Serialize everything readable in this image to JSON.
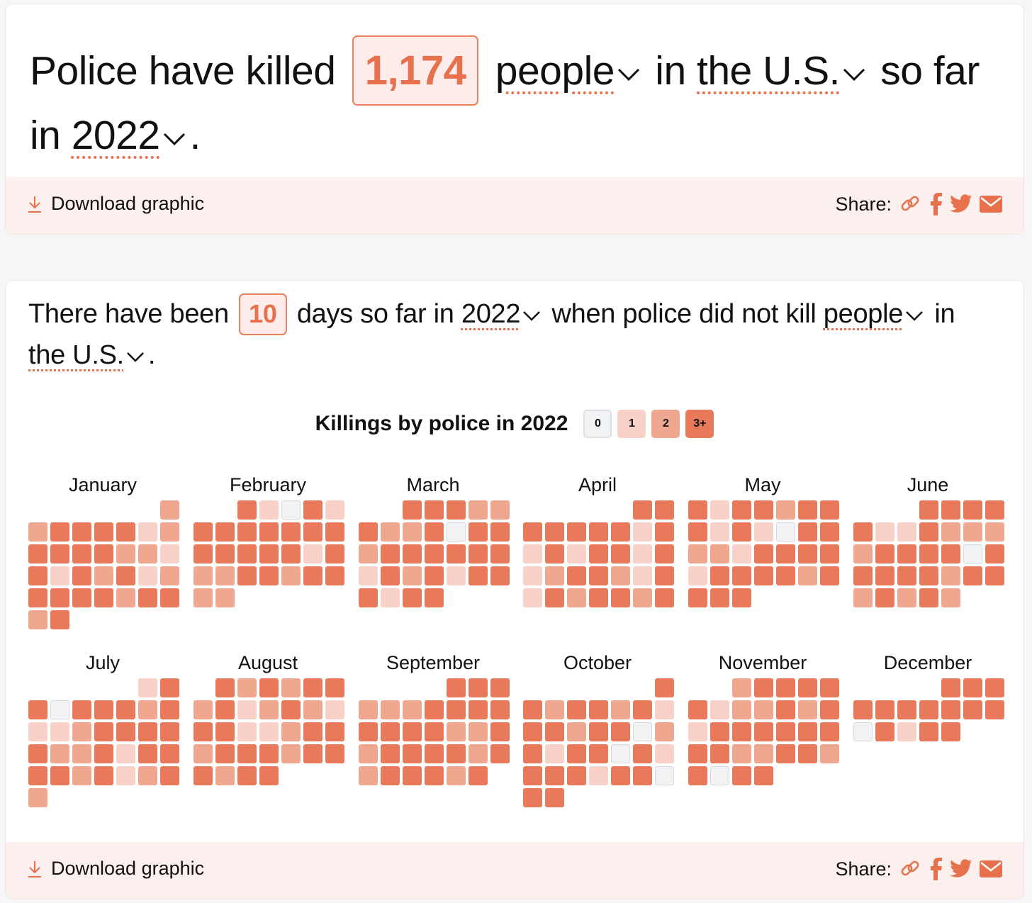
{
  "card1": {
    "headline": {
      "prefix": "Police have killed",
      "count": "1,174",
      "subject": "people",
      "mid": "in",
      "place": "the U.S.",
      "connector": "so far in",
      "year": "2022",
      "end": "."
    },
    "footer": {
      "download_label": "Download graphic",
      "share_label": "Share:"
    }
  },
  "card2": {
    "headline": {
      "prefix": "There have been",
      "count": "10",
      "mid1": "days so far in",
      "year": "2022",
      "mid2": "when police did not kill",
      "subject": "people",
      "mid3": "in",
      "place": "the U.S.",
      "end": "."
    },
    "footer": {
      "download_label": "Download graphic",
      "share_label": "Share:"
    }
  },
  "colors": {
    "accent": "#e8714d",
    "level0": "#f1f2f4",
    "level1": "#f8d2c8",
    "level2": "#efa790",
    "level3": "#e8795a",
    "footer_bg": "#fcf0ee"
  },
  "icons": [
    "download-icon",
    "link-icon",
    "facebook-icon",
    "twitter-icon",
    "mail-icon",
    "chevron-down-icon"
  ],
  "chart_data": {
    "type": "heatmap",
    "title": "Killings by police in 2022",
    "legend": [
      "0",
      "1",
      "2",
      "3+"
    ],
    "year": 2022,
    "months": [
      {
        "name": "January",
        "levels": [
          2,
          2,
          3,
          3,
          3,
          3,
          1,
          2,
          3,
          3,
          3,
          3,
          2,
          2,
          1,
          3,
          1,
          3,
          2,
          3,
          1,
          2,
          3,
          3,
          3,
          3,
          2,
          3,
          3,
          2,
          3
        ]
      },
      {
        "name": "February",
        "levels": [
          3,
          1,
          0,
          3,
          1,
          3,
          3,
          3,
          3,
          3,
          3,
          3,
          3,
          3,
          3,
          3,
          3,
          1,
          3,
          2,
          2,
          3,
          3,
          2,
          3,
          3,
          2,
          2
        ]
      },
      {
        "name": "March",
        "levels": [
          3,
          3,
          3,
          2,
          2,
          3,
          2,
          2,
          3,
          0,
          3,
          3,
          2,
          3,
          3,
          3,
          3,
          3,
          3,
          1,
          3,
          2,
          3,
          1,
          3,
          3,
          3,
          1,
          3,
          3
        ]
      },
      {
        "name": "April",
        "levels": [
          3,
          3,
          3,
          3,
          3,
          3,
          3,
          1,
          3,
          1,
          3,
          1,
          3,
          3,
          1,
          3,
          1,
          2,
          3,
          3,
          2,
          1,
          3,
          1,
          3,
          2,
          3,
          3,
          2,
          3
        ]
      },
      {
        "name": "May",
        "levels": [
          3,
          1,
          3,
          3,
          2,
          3,
          3,
          3,
          1,
          3,
          1,
          0,
          3,
          3,
          2,
          2,
          1,
          3,
          3,
          3,
          3,
          1,
          3,
          3,
          3,
          3,
          2,
          3,
          3,
          3,
          3
        ]
      },
      {
        "name": "June",
        "levels": [
          3,
          3,
          3,
          3,
          3,
          1,
          1,
          3,
          2,
          2,
          2,
          2,
          3,
          3,
          3,
          3,
          0,
          3,
          3,
          3,
          3,
          3,
          2,
          3,
          3,
          2,
          3,
          2,
          3,
          2
        ]
      },
      {
        "name": "July",
        "levels": [
          1,
          3,
          3,
          0,
          3,
          3,
          3,
          2,
          3,
          1,
          1,
          2,
          3,
          3,
          3,
          3,
          3,
          2,
          2,
          3,
          1,
          3,
          3,
          3,
          3,
          2,
          3,
          1,
          2,
          3,
          2
        ]
      },
      {
        "name": "August",
        "levels": [
          3,
          2,
          3,
          2,
          3,
          3,
          2,
          3,
          1,
          2,
          3,
          2,
          1,
          3,
          3,
          1,
          1,
          2,
          3,
          3,
          2,
          3,
          3,
          3,
          2,
          3,
          3,
          3,
          2,
          3,
          3
        ]
      },
      {
        "name": "September",
        "levels": [
          3,
          3,
          3,
          2,
          2,
          2,
          3,
          3,
          3,
          3,
          3,
          3,
          3,
          3,
          2,
          2,
          3,
          2,
          3,
          3,
          3,
          3,
          2,
          3,
          2,
          3,
          3,
          3,
          2,
          3
        ]
      },
      {
        "name": "October",
        "levels": [
          3,
          3,
          2,
          3,
          3,
          2,
          3,
          1,
          3,
          3,
          2,
          3,
          3,
          0,
          2,
          3,
          1,
          3,
          3,
          0,
          3,
          1,
          3,
          3,
          3,
          1,
          3,
          3,
          0,
          3,
          3
        ]
      },
      {
        "name": "November",
        "levels": [
          2,
          3,
          3,
          3,
          3,
          3,
          1,
          2,
          2,
          3,
          2,
          3,
          1,
          3,
          3,
          3,
          3,
          3,
          3,
          3,
          3,
          2,
          2,
          3,
          3,
          2,
          3,
          0,
          3,
          3
        ]
      },
      {
        "name": "December",
        "levels": [
          3,
          3,
          3,
          3,
          3,
          3,
          3,
          3,
          3,
          3,
          0,
          3,
          1,
          3,
          3
        ]
      }
    ]
  }
}
